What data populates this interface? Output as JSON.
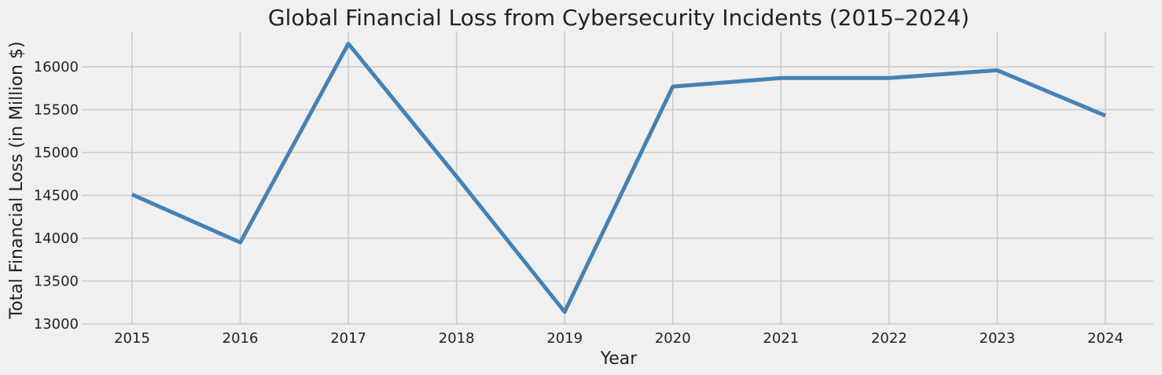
{
  "chart_data": {
    "type": "line",
    "title": "Global Financial Loss from Cybersecurity Incidents (2015–2024)",
    "xlabel": "Year",
    "ylabel": "Total Financial Loss (in Million $)",
    "x": [
      "2015",
      "2016",
      "2017",
      "2018",
      "2019",
      "2020",
      "2021",
      "2022",
      "2023",
      "2024"
    ],
    "series": [
      {
        "values": [
          14510,
          13950,
          16270,
          14720,
          13140,
          15770,
          15870,
          15870,
          15960,
          15430
        ],
        "color": "#4682b4"
      }
    ],
    "yticks": [
      13000,
      13500,
      14000,
      14500,
      15000,
      15500,
      16000
    ],
    "ylim": [
      13000,
      16400
    ],
    "grid": true,
    "background": "#f0f0f0"
  }
}
